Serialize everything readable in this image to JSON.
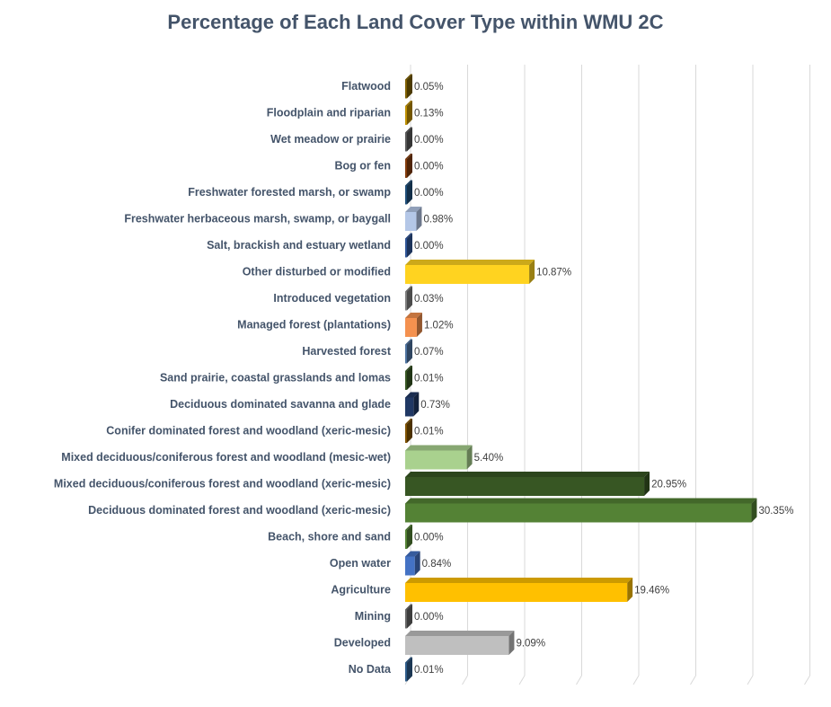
{
  "chart_data": {
    "type": "bar",
    "orientation": "horizontal",
    "style": "3d",
    "title": "Percentage of Each Land Cover Type within WMU 2C",
    "xlim": [
      0,
      35
    ],
    "grid": "vertical",
    "categories": [
      "Flatwood",
      "Floodplain and riparian",
      "Wet meadow or prairie",
      "Bog or fen",
      "Freshwater forested  marsh, or swamp",
      "Freshwater herbaceous marsh, swamp, or baygall",
      "Salt, brackish and estuary wetland",
      "Other disturbed or modified",
      "Introduced vegetation",
      "Managed forest (plantations)",
      "Harvested forest",
      "Sand prairie, coastal grasslands and lomas",
      "Deciduous dominated savanna and glade",
      "Conifer dominated forest and woodland (xeric-mesic)",
      "Mixed deciduous/coniferous forest and woodland (mesic-wet)",
      "Mixed deciduous/coniferous forest and woodland  (xeric-mesic)",
      "Deciduous dominated forest and woodland (xeric-mesic)",
      "Beach, shore and sand",
      "Open water",
      "Agriculture",
      "Mining",
      "Developed",
      "No Data"
    ],
    "values": [
      0.05,
      0.13,
      0.0,
      0.0,
      0.0,
      0.98,
      0.0,
      10.87,
      0.03,
      1.02,
      0.07,
      0.01,
      0.73,
      0.01,
      5.4,
      20.95,
      30.35,
      0.0,
      0.84,
      19.46,
      0.0,
      9.09,
      0.01
    ],
    "labels": [
      "0.05%",
      "0.13%",
      "0.00%",
      "0.00%",
      "0.00%",
      "0.98%",
      "0.00%",
      "10.87%",
      "0.03%",
      "1.02%",
      "0.07%",
      "0.01%",
      "0.73%",
      "0.01%",
      "5.40%",
      "20.95%",
      "30.35%",
      "0.00%",
      "0.84%",
      "19.46%",
      "0.00%",
      "9.09%",
      "0.01%"
    ],
    "colors": [
      "#7f6000",
      "#bf9000",
      "#595959",
      "#843c0c",
      "#1f4e79",
      "#b4c7e7",
      "#2f5597",
      "#ffd320",
      "#7f7f7f",
      "#f4914f",
      "#4e73a0",
      "#375623",
      "#203864",
      "#7f5200",
      "#a9d18e",
      "#375623",
      "#548235",
      "#548235",
      "#4472c4",
      "#ffc000",
      "#666666",
      "#bfbfbf",
      "#2e5c8a"
    ]
  }
}
